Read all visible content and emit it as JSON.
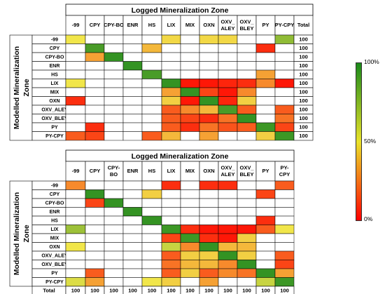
{
  "colors": {
    "p0": "#ff0000",
    "p50": "#f1e64a",
    "p100": "#1f8a1f",
    "grid": "#000000",
    "empty": "#ffffff"
  },
  "legend": {
    "top_label": "100%",
    "mid_label": "50%",
    "bottom_label": "0%"
  },
  "chart_data": [
    {
      "type": "heatmap",
      "title": "Logged Mineralization Zone",
      "ylabel": "Modelled Mineralization Zone",
      "x_categories": [
        "-99",
        "CPY",
        "CPY-BO",
        "ENR",
        "HS",
        "LIX",
        "MIX",
        "OXN",
        "OXV_ ALEY",
        "OXV_ BLEY",
        "PY",
        "PY-CPY"
      ],
      "y_categories": [
        "-99",
        "CPY",
        "CPY-BO",
        "ENR",
        "HS",
        "LIX",
        "MIX",
        "OXN",
        "OXV_ALEY",
        "OXV_BLEY",
        "PY",
        "PY-CPY"
      ],
      "total_label": "Total",
      "totals": [
        100,
        100,
        100,
        100,
        100,
        100,
        100,
        100,
        100,
        100,
        100,
        100
      ],
      "total_position": "right",
      "color_scale": {
        "min": 0,
        "max": 100,
        "unit": "%"
      },
      "values": [
        [
          50,
          null,
          null,
          null,
          null,
          47,
          null,
          47,
          47,
          null,
          null,
          73
        ],
        [
          null,
          90,
          null,
          null,
          40,
          null,
          null,
          null,
          null,
          null,
          10,
          null
        ],
        [
          null,
          35,
          95,
          null,
          null,
          null,
          null,
          null,
          null,
          null,
          null,
          null
        ],
        [
          null,
          null,
          null,
          95,
          null,
          null,
          null,
          null,
          null,
          null,
          null,
          null
        ],
        [
          null,
          null,
          null,
          null,
          90,
          null,
          null,
          null,
          null,
          null,
          35,
          null
        ],
        [
          50,
          null,
          null,
          null,
          null,
          95,
          5,
          5,
          8,
          10,
          30,
          5
        ],
        [
          null,
          null,
          null,
          null,
          null,
          35,
          95,
          15,
          5,
          30,
          null,
          null
        ],
        [
          10,
          null,
          null,
          null,
          null,
          45,
          5,
          95,
          8,
          45,
          null,
          null
        ],
        [
          null,
          null,
          null,
          null,
          null,
          20,
          30,
          40,
          90,
          20,
          null,
          20
        ],
        [
          null,
          null,
          null,
          null,
          null,
          20,
          15,
          10,
          25,
          95,
          null,
          25
        ],
        [
          null,
          10,
          null,
          null,
          null,
          20,
          10,
          25,
          18,
          20,
          93,
          15
        ],
        [
          20,
          15,
          null,
          null,
          20,
          40,
          null,
          35,
          null,
          null,
          45,
          93
        ]
      ]
    },
    {
      "type": "heatmap",
      "title": "Logged Mineralization Zone",
      "ylabel": "Modelled Mineralization Zone",
      "x_categories": [
        "-99",
        "CPY",
        "CPY- BO",
        "ENR",
        "HS",
        "LIX",
        "MIX",
        "OXN",
        "OXV_ ALEY",
        "OXV_ BLEY",
        "PY",
        "PY- CPY"
      ],
      "y_categories": [
        "-99",
        "CPY",
        "CPY-BO",
        "ENR",
        "HS",
        "LIX",
        "MIX",
        "OXN",
        "OXV_ALEY",
        "OXV_BLEY",
        "PY",
        "PY-CPY"
      ],
      "total_label": "Total",
      "totals": [
        100,
        100,
        100,
        100,
        100,
        100,
        100,
        100,
        100,
        100,
        100,
        100
      ],
      "total_position": "bottom",
      "color_scale": {
        "min": 0,
        "max": 100,
        "unit": "%"
      },
      "values": [
        [
          30,
          null,
          null,
          null,
          null,
          10,
          null,
          10,
          10,
          null,
          null,
          20
        ],
        [
          null,
          95,
          null,
          null,
          45,
          null,
          null,
          null,
          null,
          null,
          15,
          null
        ],
        [
          null,
          15,
          95,
          null,
          null,
          null,
          null,
          null,
          null,
          null,
          null,
          null
        ],
        [
          null,
          null,
          null,
          95,
          null,
          null,
          null,
          null,
          null,
          null,
          null,
          null
        ],
        [
          null,
          null,
          null,
          null,
          95,
          null,
          null,
          null,
          null,
          null,
          10,
          null
        ],
        [
          70,
          null,
          null,
          null,
          null,
          93,
          10,
          5,
          5,
          5,
          20,
          50
        ],
        [
          null,
          null,
          null,
          null,
          null,
          15,
          93,
          10,
          5,
          45,
          null,
          null
        ],
        [
          50,
          null,
          null,
          null,
          null,
          60,
          30,
          95,
          40,
          40,
          null,
          null
        ],
        [
          null,
          null,
          null,
          null,
          null,
          20,
          45,
          45,
          95,
          45,
          null,
          20
        ],
        [
          null,
          null,
          null,
          null,
          null,
          25,
          40,
          40,
          30,
          95,
          null,
          15
        ],
        [
          null,
          20,
          null,
          null,
          null,
          20,
          45,
          20,
          30,
          25,
          95,
          35
        ],
        [
          55,
          35,
          null,
          null,
          50,
          45,
          null,
          35,
          null,
          null,
          60,
          93
        ]
      ]
    }
  ]
}
